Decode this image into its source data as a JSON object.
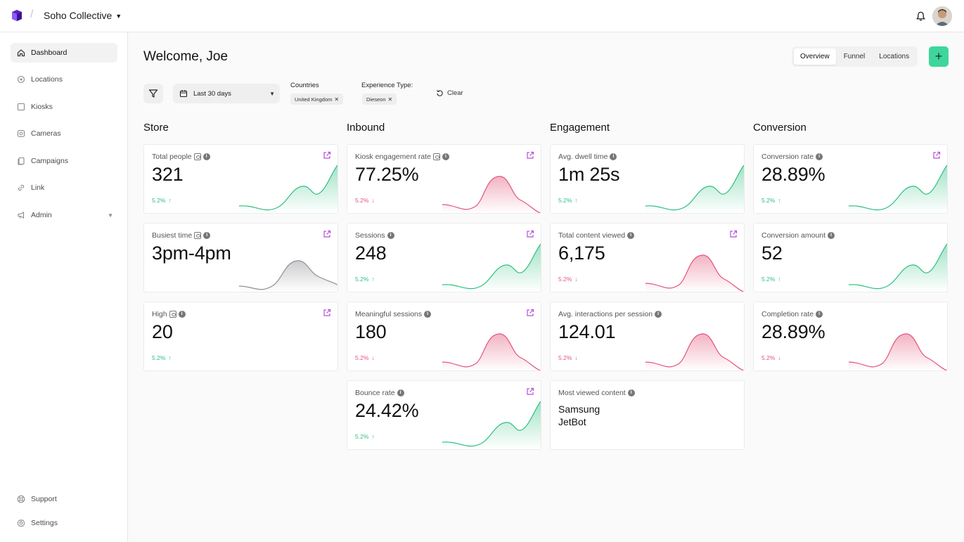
{
  "brand": {
    "accent": "#3ed69a",
    "logo_color": "#6b2fd3"
  },
  "header": {
    "org_name": "Soho Collective",
    "separator": "/"
  },
  "sidebar": {
    "items": [
      {
        "label": "Dashboard",
        "icon": "home-icon"
      },
      {
        "label": "Locations",
        "icon": "location-icon"
      },
      {
        "label": "Kiosks",
        "icon": "kiosk-icon"
      },
      {
        "label": "Cameras",
        "icon": "camera-icon"
      },
      {
        "label": "Campaigns",
        "icon": "campaign-icon"
      },
      {
        "label": "Link",
        "icon": "link-icon"
      },
      {
        "label": "Admin",
        "icon": "megaphone-icon"
      }
    ],
    "bottom": [
      {
        "label": "Support",
        "icon": "support-icon"
      },
      {
        "label": "Settings",
        "icon": "gear-icon"
      }
    ]
  },
  "main": {
    "welcome": "Welcome, Joe",
    "tabs": [
      "Overview",
      "Funnel",
      "Locations"
    ],
    "add_label": "+"
  },
  "filters": {
    "date_range": "Last 30 days",
    "countries_label": "Countries",
    "countries_chip": "United Kingdom",
    "experience_label": "Experience Type:",
    "experience_chip": "Dieseon",
    "clear_label": "Clear"
  },
  "sections": {
    "store": "Store",
    "inbound": "Inbound",
    "engagement": "Engagement",
    "conversion": "Conversion"
  },
  "cards": {
    "total_people": {
      "title": "Total people",
      "value": "321",
      "delta": "5.2%",
      "trend": "up"
    },
    "busiest_time": {
      "title": "Busiest time",
      "value": "3pm-4pm",
      "trend": "neutral"
    },
    "high": {
      "title": "High",
      "value": "20",
      "delta": "5.2%",
      "trend": "up"
    },
    "kiosk_engagement": {
      "title": "Kiosk engagement rate",
      "value": "77.25%",
      "delta": "5.2%",
      "trend": "down"
    },
    "sessions": {
      "title": "Sessions",
      "value": "248",
      "delta": "5.2%",
      "trend": "up"
    },
    "meaningful_sessions": {
      "title": "Meaningful sessions",
      "value": "180",
      "delta": "5.2%",
      "trend": "down"
    },
    "bounce_rate": {
      "title": "Bounce rate",
      "value": "24.42%",
      "delta": "5.2%",
      "trend": "up"
    },
    "avg_dwell": {
      "title": "Avg. dwell time",
      "value": "1m 25s",
      "delta": "5.2%",
      "trend": "up"
    },
    "total_content": {
      "title": "Total content viewed",
      "value": "6,175",
      "delta": "5.2%",
      "trend": "down"
    },
    "avg_interactions": {
      "title": "Avg. interactions per session",
      "value": "124.01",
      "delta": "5.2%",
      "trend": "down"
    },
    "most_viewed": {
      "title": "Most viewed content",
      "line1": "Samsung",
      "line2": "JetBot"
    },
    "conversion_rate": {
      "title": "Conversion rate",
      "value": "28.89%",
      "delta": "5.2%",
      "trend": "up"
    },
    "conversion_amount": {
      "title": "Conversion amount",
      "value": "52",
      "delta": "5.2%",
      "trend": "up"
    },
    "completion_rate": {
      "title": "Completion rate",
      "value": "28.89%",
      "delta": "5.2%",
      "trend": "down"
    }
  },
  "colors": {
    "up": "#2fbf80",
    "down": "#e3557a",
    "neutral": "#8e8e96"
  }
}
